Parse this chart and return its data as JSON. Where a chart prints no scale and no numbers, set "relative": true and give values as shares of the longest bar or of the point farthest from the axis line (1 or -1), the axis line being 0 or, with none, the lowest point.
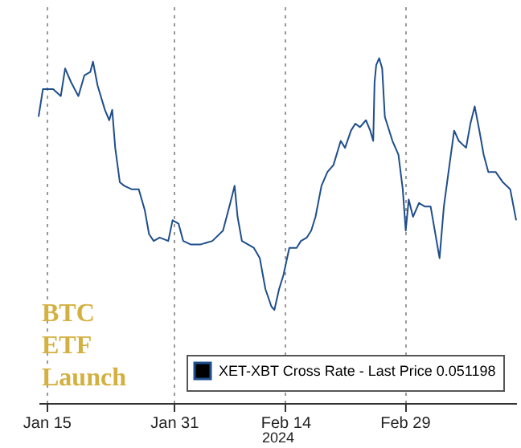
{
  "chart_data": {
    "type": "line",
    "relative": true,
    "xlabel": "2024",
    "grid": "x",
    "legend": "bottom right",
    "annotations": [
      "BTC ETF Launch"
    ],
    "xlim": [
      "2024-01-14",
      "2024-03-14"
    ],
    "xticks": [
      {
        "value": "2024-01-15",
        "label": "Jan 15"
      },
      {
        "value": "2024-01-31",
        "label": "Jan 31"
      },
      {
        "value": "2024-02-14",
        "label": "Feb 14"
      },
      {
        "value": "2024-02-29",
        "label": "Feb 29"
      }
    ],
    "x": [
      "2024-01-14T00:00",
      "2024-01-14T13:00",
      "2024-01-15T20:00",
      "2024-01-16T19:00",
      "2024-01-17T08:00",
      "2024-01-18T02:00",
      "2024-01-19T00:00",
      "2024-01-19T18:00",
      "2024-01-20T12:00",
      "2024-01-20T20:00",
      "2024-01-21T10:00",
      "2024-01-22T08:00",
      "2024-01-22T21:00",
      "2024-01-23T06:00",
      "2024-01-23T15:00",
      "2024-01-24T05:00",
      "2024-01-24T18:00",
      "2024-01-25T16:00",
      "2024-01-26T14:00",
      "2024-01-27T08:00",
      "2024-01-27T21:00",
      "2024-01-28T11:00",
      "2024-01-29T05:00",
      "2024-01-30T07:00",
      "2024-01-30T20:00",
      "2024-01-31T14:00",
      "2024-02-01T04:00",
      "2024-02-02T02:00",
      "2024-02-03T09:00",
      "2024-02-04T20:00",
      "2024-02-06T04:00",
      "2024-02-07T02:00",
      "2024-02-07T15:00",
      "2024-02-08T00:00",
      "2024-02-08T13:00",
      "2024-02-09T07:00",
      "2024-02-10T01:00",
      "2024-02-10T19:00",
      "2024-02-11T12:00",
      "2024-02-12T06:00",
      "2024-02-12T15:00",
      "2024-02-13T05:00",
      "2024-02-13T18:00",
      "2024-02-14T12:00",
      "2024-02-15T10:00",
      "2024-02-15T23:00",
      "2024-02-16T17:00",
      "2024-02-17T06:00",
      "2024-02-17T19:00",
      "2024-02-18T13:00",
      "2024-02-19T07:00",
      "2024-02-20T01:00",
      "2024-02-20T23:00",
      "2024-02-21T12:00",
      "2024-02-22T06:00",
      "2024-02-22T19:00",
      "2024-02-23T09:00",
      "2024-02-24T03:00",
      "2024-02-24T16:00",
      "2024-02-25T01:00",
      "2024-02-25T05:00",
      "2024-02-25T10:00",
      "2024-02-25T19:00",
      "2024-02-26T04:00",
      "2024-02-26T12:00",
      "2024-02-27T11:00",
      "2024-02-28T05:00",
      "2024-02-28T18:00",
      "2024-02-29T03:00",
      "2024-02-29T12:00",
      "2024-03-01T01:00",
      "2024-03-01T19:00",
      "2024-03-02T12:00",
      "2024-03-03T06:00",
      "2024-03-04T00:00",
      "2024-03-04T09:00",
      "2024-03-04T22:00",
      "2024-03-05T12:00",
      "2024-03-06T05:00",
      "2024-03-06T19:00",
      "2024-03-07T17:00",
      "2024-03-08T06:00",
      "2024-03-08T19:00",
      "2024-03-09T09:00",
      "2024-03-09T22:00",
      "2024-03-10T12:00",
      "2024-03-11T10:00",
      "2024-03-12T08:00",
      "2024-03-13T06:00",
      "2024-03-14T00:00"
    ],
    "series": [
      {
        "name": "XET-XBT Cross Rate - Last Price 0.051198",
        "color": "#1f4e8c",
        "values": [
          0.83,
          0.91,
          0.91,
          0.89,
          0.97,
          0.93,
          0.89,
          0.95,
          0.96,
          0.99,
          0.92,
          0.85,
          0.82,
          0.85,
          0.74,
          0.64,
          0.63,
          0.62,
          0.62,
          0.56,
          0.49,
          0.47,
          0.48,
          0.47,
          0.53,
          0.52,
          0.47,
          0.46,
          0.46,
          0.47,
          0.5,
          0.58,
          0.63,
          0.54,
          0.47,
          0.46,
          0.45,
          0.42,
          0.33,
          0.28,
          0.27,
          0.33,
          0.37,
          0.45,
          0.45,
          0.47,
          0.48,
          0.5,
          0.54,
          0.63,
          0.67,
          0.69,
          0.76,
          0.74,
          0.79,
          0.81,
          0.8,
          0.82,
          0.79,
          0.76,
          0.93,
          0.98,
          1,
          0.97,
          0.83,
          0.76,
          0.72,
          0.62,
          0.5,
          0.59,
          0.54,
          0.58,
          0.57,
          0.57,
          0.47,
          0.42,
          0.57,
          0.67,
          0.79,
          0.76,
          0.74,
          0.81,
          0.86,
          0.79,
          0.72,
          0.67,
          0.67,
          0.64,
          0.62,
          0.53
        ]
      }
    ]
  }
}
